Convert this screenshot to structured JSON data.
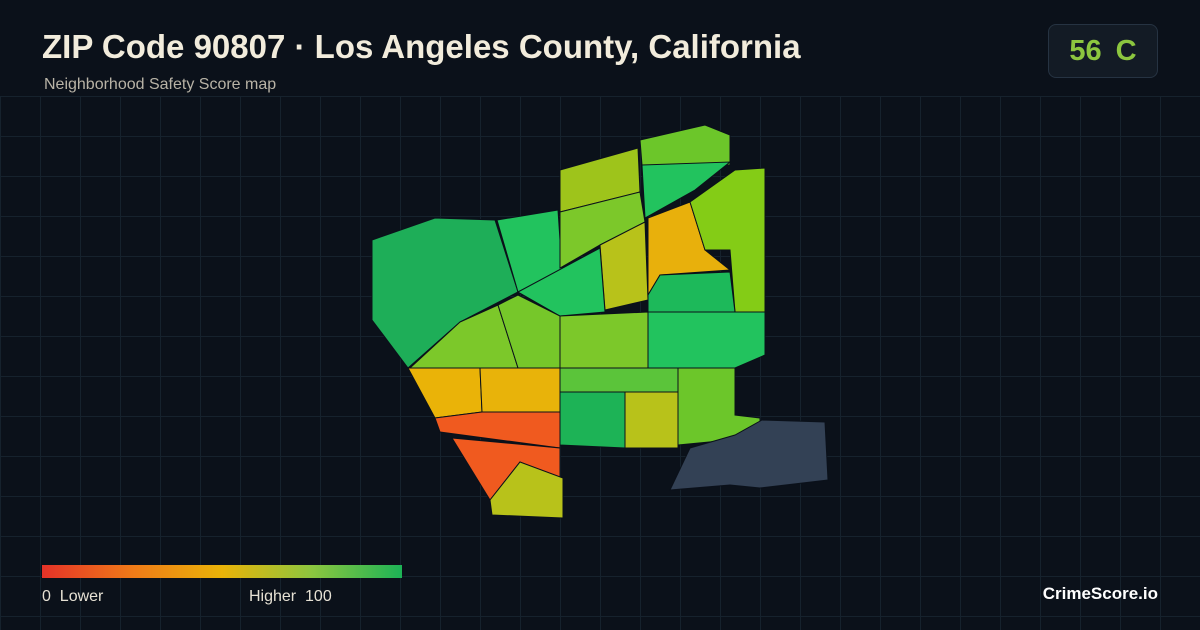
{
  "header": {
    "title": "ZIP Code 90807 · Los Angeles County, California",
    "subtitle": "Neighborhood Safety Score map"
  },
  "score": {
    "value": 56,
    "grade": "C"
  },
  "legend": {
    "min": 0,
    "min_label": "Lower",
    "max_label": "Higher",
    "max": 100
  },
  "footer": {
    "brand": "CrimeScore.io"
  }
}
